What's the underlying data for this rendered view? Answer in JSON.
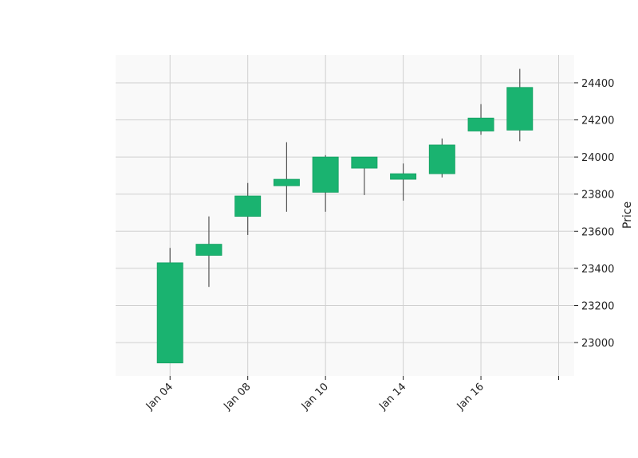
{
  "chart_data": {
    "type": "candlestick",
    "title": "",
    "xlabel": "",
    "ylabel": "Price",
    "y_axis_side": "right",
    "grid": true,
    "ylim": [
      22820,
      24550
    ],
    "yticks": [
      23000,
      23200,
      23400,
      23600,
      23800,
      24000,
      24200,
      24400
    ],
    "x_tick_labels": [
      "Jan 04",
      "Jan 08",
      "Jan 10",
      "Jan 14",
      "Jan 16",
      ""
    ],
    "x_tick_positions": [
      0,
      2,
      4,
      6,
      8,
      10
    ],
    "xlim": [
      -1.4,
      10.4
    ],
    "colors": {
      "up": "#1ab370",
      "wick": "#555555",
      "plot_bg": "#f9f9f9",
      "grid": "#d0d0d0"
    },
    "candles": [
      {
        "open": 22890,
        "close": 23430,
        "high": 23510,
        "low": 22890
      },
      {
        "open": 23470,
        "close": 23530,
        "high": 23680,
        "low": 23300
      },
      {
        "open": 23680,
        "close": 23790,
        "high": 23860,
        "low": 23580
      },
      {
        "open": 23845,
        "close": 23880,
        "high": 24080,
        "low": 23705
      },
      {
        "open": 23810,
        "close": 24000,
        "high": 24010,
        "low": 23705
      },
      {
        "open": 23940,
        "close": 24000,
        "high": 24000,
        "low": 23795
      },
      {
        "open": 23880,
        "close": 23910,
        "high": 23965,
        "low": 23765
      },
      {
        "open": 23910,
        "close": 24065,
        "high": 24100,
        "low": 23890
      },
      {
        "open": 24140,
        "close": 24210,
        "high": 24285,
        "low": 24120
      },
      {
        "open": 24145,
        "close": 24375,
        "high": 24475,
        "low": 24085
      }
    ]
  }
}
